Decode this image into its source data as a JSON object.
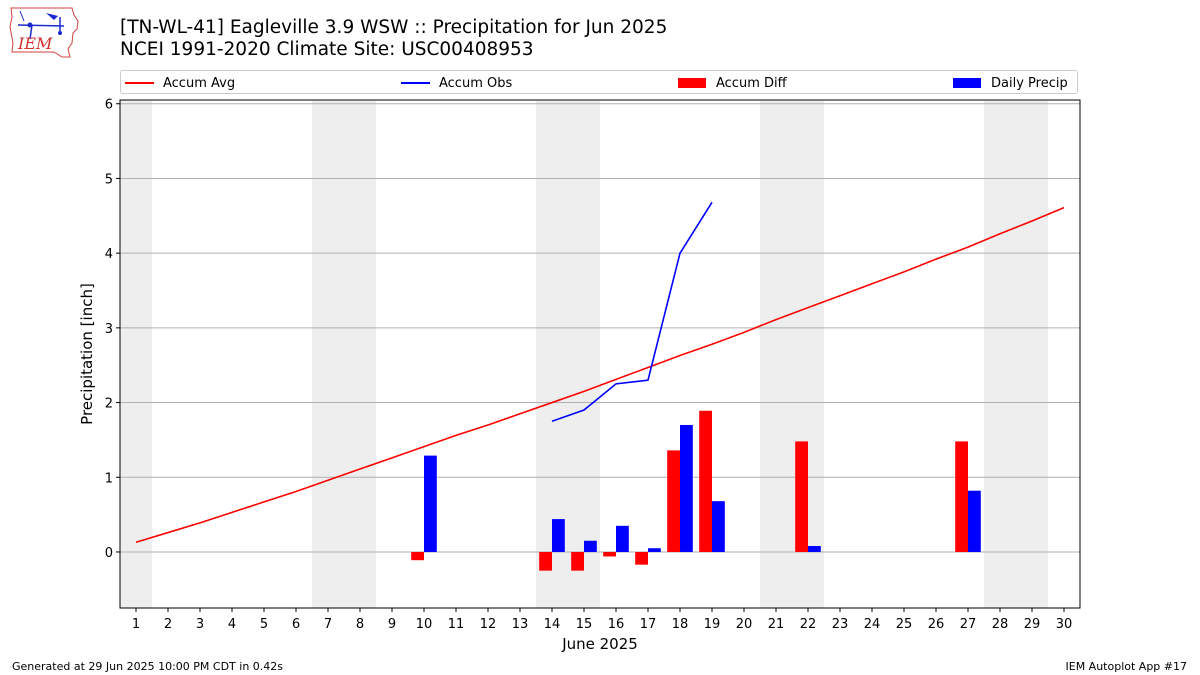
{
  "header": {
    "title_line1": "[TN-WL-41] Eagleville 3.9 WSW :: Precipitation for Jun 2025",
    "title_line2": "NCEI 1991-2020 Climate Site: USC00408953",
    "logo_text": "IEM"
  },
  "footer": {
    "generated": "Generated at 29 Jun 2025 10:00 PM CDT in 0.42s",
    "app": "IEM Autoplot App #17"
  },
  "colors": {
    "avg": "#ff0000",
    "obs": "#0000ff",
    "diff": "#ff0000",
    "daily": "#0000ff",
    "weekend_band": "#eeeeee",
    "grid": "#b0b0b0"
  },
  "chart_data": {
    "type": "bar",
    "xlabel": "June 2025",
    "ylabel": "Precipitation [inch]",
    "xlim": [
      0.5,
      30.5
    ],
    "ylim": [
      -0.75,
      6.05
    ],
    "yticks": [
      0,
      1,
      2,
      3,
      4,
      5,
      6
    ],
    "x": [
      1,
      2,
      3,
      4,
      5,
      6,
      7,
      8,
      9,
      10,
      11,
      12,
      13,
      14,
      15,
      16,
      17,
      18,
      19,
      20,
      21,
      22,
      23,
      24,
      25,
      26,
      27,
      28,
      29,
      30
    ],
    "weekend_days": [
      1,
      7,
      8,
      14,
      15,
      21,
      22,
      28,
      29
    ],
    "grid": "horizontal",
    "legend_position": "top",
    "legend": [
      "Accum Avg",
      "Accum Obs",
      "Accum Diff",
      "Daily Precip"
    ],
    "series": [
      {
        "name": "Accum Avg",
        "kind": "line",
        "x": [
          1,
          2,
          3,
          4,
          5,
          6,
          7,
          8,
          9,
          10,
          11,
          12,
          13,
          14,
          15,
          16,
          17,
          18,
          19,
          20,
          21,
          22,
          23,
          24,
          25,
          26,
          27,
          28,
          29,
          30
        ],
        "values": [
          0.13,
          0.26,
          0.39,
          0.53,
          0.67,
          0.81,
          0.96,
          1.11,
          1.26,
          1.41,
          1.56,
          1.7,
          1.85,
          2.0,
          2.15,
          2.31,
          2.47,
          2.63,
          2.78,
          2.94,
          3.11,
          3.27,
          3.43,
          3.59,
          3.75,
          3.92,
          4.08,
          4.26,
          4.43,
          4.61
        ]
      },
      {
        "name": "Accum Obs",
        "kind": "line",
        "x": [
          14,
          15,
          16,
          17,
          18,
          19
        ],
        "values": [
          1.75,
          1.9,
          2.25,
          2.3,
          4.0,
          4.68
        ]
      },
      {
        "name": "Accum Diff",
        "kind": "bar",
        "x": [
          10,
          14,
          15,
          16,
          17,
          18,
          19,
          22,
          27
        ],
        "values": [
          -0.11,
          -0.25,
          -0.25,
          -0.06,
          -0.17,
          1.36,
          1.89,
          1.48,
          1.48
        ]
      },
      {
        "name": "Daily Precip",
        "kind": "bar",
        "x": [
          10,
          14,
          15,
          16,
          17,
          18,
          19,
          22,
          27
        ],
        "values": [
          1.29,
          0.44,
          0.15,
          0.35,
          0.05,
          1.7,
          0.68,
          0.08,
          0.82
        ]
      }
    ]
  }
}
